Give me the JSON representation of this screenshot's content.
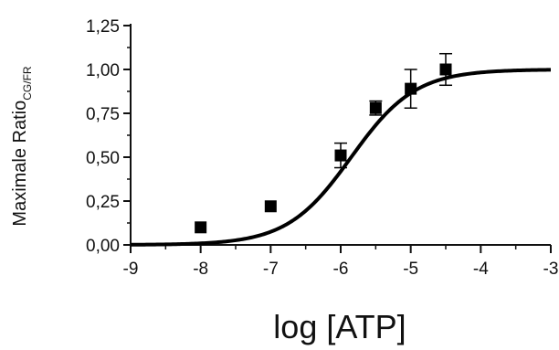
{
  "chart_data": {
    "type": "scatter",
    "xlabel": "log [ATP]",
    "ylabel": {
      "main": "Maximale Ratio",
      "subscript": "CG/FR"
    },
    "xlim": [
      -9,
      -3
    ],
    "ylim": [
      0,
      1.25
    ],
    "x_ticks": [
      "-9",
      "-8",
      "-7",
      "-6",
      "-5",
      "-4",
      "-3"
    ],
    "y_ticks": [
      "0,00",
      "0,25",
      "0,50",
      "0,75",
      "1,00",
      "1,25"
    ],
    "grid": false,
    "series": [
      {
        "points": [
          {
            "x": -8.0,
            "y": 0.1,
            "err": 0.0
          },
          {
            "x": -7.0,
            "y": 0.22,
            "err": 0.0
          },
          {
            "x": -6.0,
            "y": 0.51,
            "err": 0.07
          },
          {
            "x": -5.5,
            "y": 0.78,
            "err": 0.04
          },
          {
            "x": -5.0,
            "y": 0.89,
            "err": 0.11
          },
          {
            "x": -4.5,
            "y": 1.0,
            "err": 0.09
          }
        ]
      }
    ],
    "fit_curve": {
      "type": "sigmoid",
      "bottom": 0.0,
      "top": 1.0,
      "logEC50": -5.85,
      "hill": 0.95
    }
  },
  "colors": {
    "marker": "#000000",
    "curve": "#000000",
    "axis": "#111111"
  }
}
